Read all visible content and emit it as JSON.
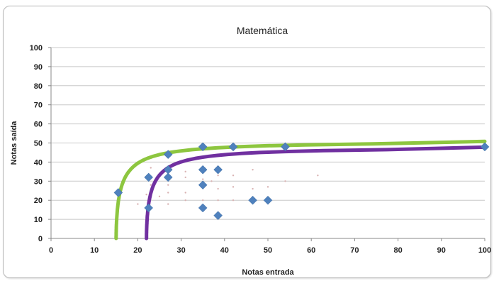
{
  "chart_data": {
    "type": "scatter",
    "title": "Matemática",
    "xlabel": "Notas entrada",
    "ylabel": "Notas saída",
    "xlim": [
      0,
      100
    ],
    "ylim": [
      0,
      100
    ],
    "xticks": [
      "0",
      "10",
      "20",
      "30",
      "40",
      "50",
      "60",
      "70",
      "80",
      "90",
      "100"
    ],
    "yticks": [
      "0",
      "10",
      "20",
      "30",
      "40",
      "50",
      "60",
      "70",
      "80",
      "90",
      "100"
    ],
    "grid": "horizontal",
    "legend": "none",
    "series": [
      {
        "marker": "diamond",
        "color": "#4f81bd",
        "points": [
          [
            15.5,
            24
          ],
          [
            22.5,
            16
          ],
          [
            22.5,
            32
          ],
          [
            27,
            32
          ],
          [
            27,
            36
          ],
          [
            27,
            44
          ],
          [
            35,
            48
          ],
          [
            35,
            36
          ],
          [
            35,
            28
          ],
          [
            35,
            16
          ],
          [
            38.5,
            36
          ],
          [
            38.5,
            12
          ],
          [
            42,
            48
          ],
          [
            46.5,
            20
          ],
          [
            50,
            20
          ],
          [
            54,
            48
          ],
          [
            100,
            48
          ]
        ]
      },
      {
        "marker": "dot",
        "color": "#d9b3b3",
        "points": [
          [
            20,
            18
          ],
          [
            22,
            23
          ],
          [
            23,
            28
          ],
          [
            23,
            37
          ],
          [
            25,
            22
          ],
          [
            27,
            18
          ],
          [
            27,
            24
          ],
          [
            27,
            28
          ],
          [
            31,
            20
          ],
          [
            31,
            24
          ],
          [
            31,
            32
          ],
          [
            31,
            35
          ],
          [
            35,
            20
          ],
          [
            35,
            31
          ],
          [
            37,
            30
          ],
          [
            38.5,
            20
          ],
          [
            38.5,
            26
          ],
          [
            38.5,
            33
          ],
          [
            42,
            20
          ],
          [
            42,
            27
          ],
          [
            42,
            33
          ],
          [
            46.5,
            26
          ],
          [
            46.5,
            36
          ],
          [
            50,
            27
          ],
          [
            54,
            30
          ],
          [
            61.5,
            33
          ]
        ]
      }
    ],
    "fits": [
      {
        "color": "#8dc63f",
        "asymptote_x": 15,
        "plateau_y": 51
      },
      {
        "color": "#7030a0",
        "asymptote_x": 22,
        "plateau_y": 48
      }
    ]
  }
}
